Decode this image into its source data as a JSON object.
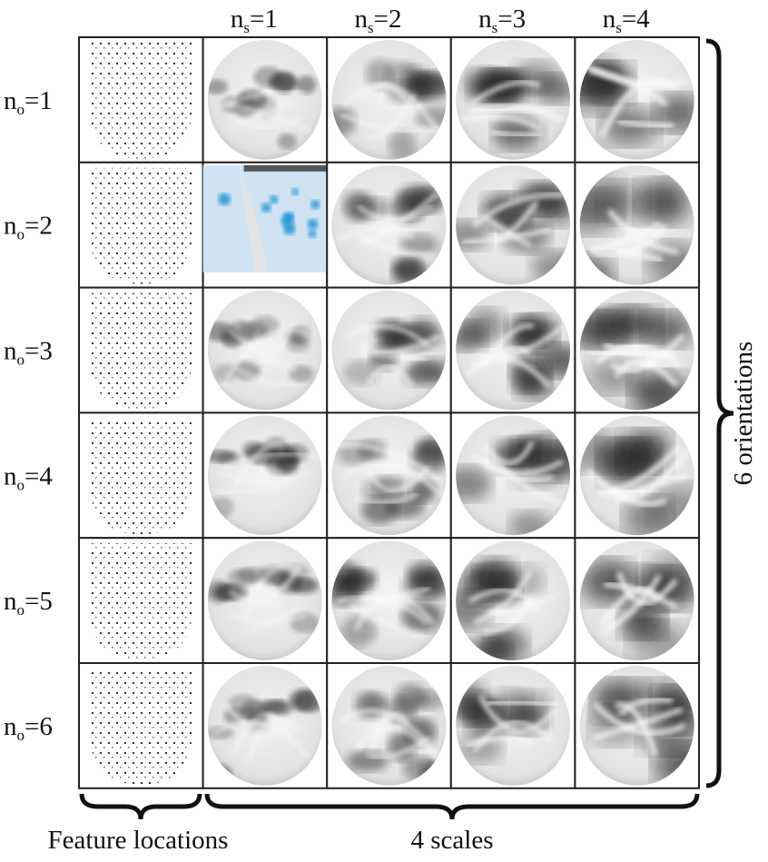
{
  "column_headers": [
    {
      "symbol": "n",
      "subscript": "s",
      "text": "=1"
    },
    {
      "symbol": "n",
      "subscript": "s",
      "text": "=2"
    },
    {
      "symbol": "n",
      "subscript": "s",
      "text": "=3"
    },
    {
      "symbol": "n",
      "subscript": "s",
      "text": "=4"
    }
  ],
  "row_labels": [
    {
      "symbol": "n",
      "subscript": "o",
      "text": "=1"
    },
    {
      "symbol": "n",
      "subscript": "o",
      "text": "=2"
    },
    {
      "symbol": "n",
      "subscript": "o",
      "text": "=3"
    },
    {
      "symbol": "n",
      "subscript": "o",
      "text": "=4"
    },
    {
      "symbol": "n",
      "subscript": "o",
      "text": "=5"
    },
    {
      "symbol": "n",
      "subscript": "o",
      "text": "=6"
    }
  ],
  "bottom_labels": {
    "features": "Feature locations",
    "scales": "4 scales"
  },
  "side_label": "6 orientations"
}
